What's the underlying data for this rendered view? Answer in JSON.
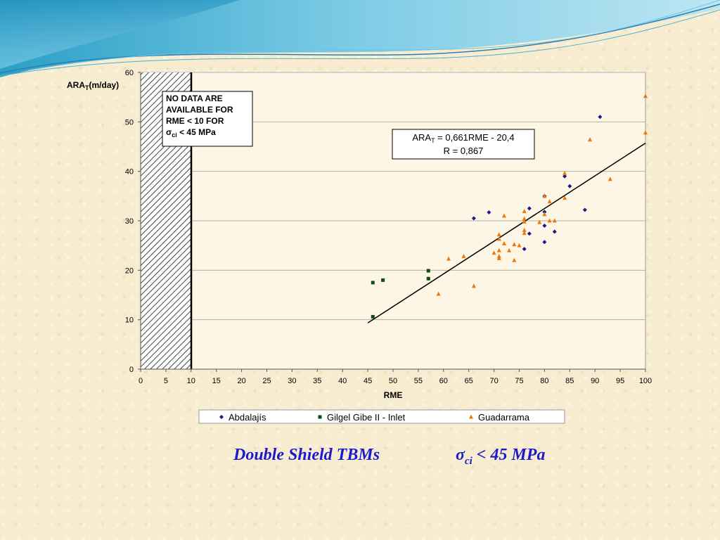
{
  "chart_data": {
    "type": "scatter",
    "xlabel": "RME",
    "ylabel_main": "ARA",
    "ylabel_sub": "T",
    "ylabel_rest": "(m/day)",
    "xlim": [
      0,
      100
    ],
    "ylim": [
      0,
      60
    ],
    "xticks": [
      "0",
      "5",
      "10",
      "15",
      "20",
      "25",
      "30",
      "35",
      "40",
      "45",
      "50",
      "55",
      "60",
      "65",
      "70",
      "75",
      "80",
      "85",
      "90",
      "95",
      "100"
    ],
    "yticks": [
      "0",
      "10",
      "20",
      "30",
      "40",
      "50",
      "60"
    ],
    "grid": "horizontal",
    "legend_position": "bottom",
    "series": [
      {
        "name": "Abdalajís",
        "marker": "diamond",
        "color": "#1a1a8c",
        "points": [
          [
            66,
            30.5
          ],
          [
            69,
            31.7
          ],
          [
            76,
            24.3
          ],
          [
            77,
            27.4
          ],
          [
            77,
            32.5
          ],
          [
            80,
            25.7
          ],
          [
            80,
            29
          ],
          [
            80,
            31.8
          ],
          [
            80,
            35
          ],
          [
            82,
            27.8
          ],
          [
            84,
            39
          ],
          [
            85,
            37
          ],
          [
            88,
            32.2
          ],
          [
            91,
            51
          ]
        ]
      },
      {
        "name": "Gilgel Gibe II - Inlet",
        "marker": "square",
        "color": "#0f4d0f",
        "points": [
          [
            46,
            10.6
          ],
          [
            46,
            17.5
          ],
          [
            48,
            18
          ],
          [
            57,
            18.3
          ],
          [
            57,
            19.9
          ]
        ]
      },
      {
        "name": "Guadarrama",
        "marker": "triangle",
        "color": "#e8780f",
        "points": [
          [
            59,
            15.2
          ],
          [
            61,
            22.3
          ],
          [
            64,
            22.8
          ],
          [
            66,
            16.8
          ],
          [
            70,
            23.5
          ],
          [
            71,
            22.4
          ],
          [
            71,
            22.8
          ],
          [
            71,
            24
          ],
          [
            71,
            26.3
          ],
          [
            71,
            27.2
          ],
          [
            72,
            25.4
          ],
          [
            72,
            31
          ],
          [
            73,
            24
          ],
          [
            74,
            22
          ],
          [
            74,
            25.2
          ],
          [
            75,
            25
          ],
          [
            76,
            27.5
          ],
          [
            76,
            28.1
          ],
          [
            76,
            29.8
          ],
          [
            76,
            30.4
          ],
          [
            76,
            31.9
          ],
          [
            79,
            29.7
          ],
          [
            80,
            31.3
          ],
          [
            80,
            35
          ],
          [
            81,
            30
          ],
          [
            81,
            33.9
          ],
          [
            82,
            30
          ],
          [
            84,
            34.6
          ],
          [
            84,
            39.6
          ],
          [
            89,
            46.4
          ],
          [
            93,
            38.4
          ],
          [
            100,
            47.8
          ],
          [
            100,
            55.2
          ]
        ]
      }
    ],
    "regression": {
      "slope": 0.661,
      "intercept": -20.4,
      "x_range": [
        45,
        100
      ]
    },
    "no_data_region": {
      "x_range": [
        0,
        10
      ]
    }
  },
  "annotations": {
    "no_data_lines": [
      "NO DATA ARE",
      "AVAILABLE FOR",
      "RME < 10 FOR"
    ],
    "no_data_sigma": "σ",
    "no_data_sigma_sub": "ci",
    "no_data_tail": " < 45 MPa",
    "equation_main": "ARA",
    "equation_sub": "T",
    "equation_rest": " = 0,661RME - 20,4",
    "r_value": "R = 0,867"
  },
  "caption": {
    "left": "Double Shield TBMs",
    "right_sigma": "σ",
    "right_sub": "ci",
    "right_rest": " < 45 MPa"
  },
  "colors": {
    "wave_light": "#8fd3ea",
    "wave_dark": "#2aa0c8",
    "plot_bg": "#fdf6e4",
    "grid": "#b0b0b0",
    "regression": "#000000"
  }
}
